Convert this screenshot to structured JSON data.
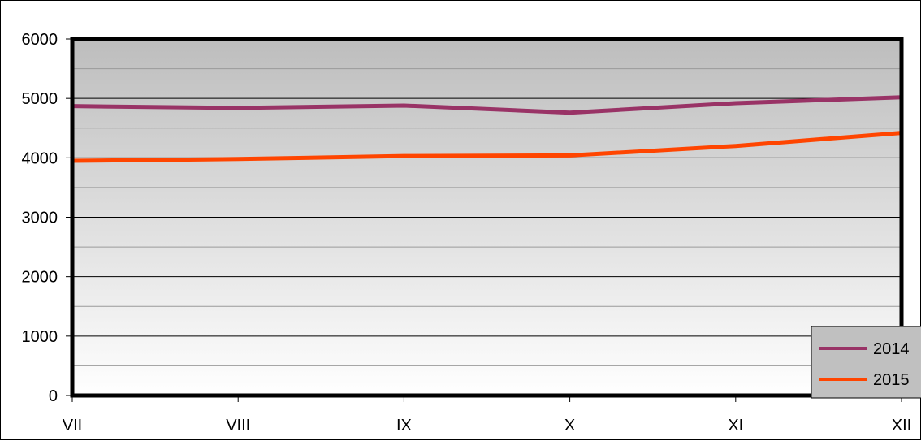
{
  "chart_data": {
    "type": "line",
    "categories": [
      "VII",
      "VIII",
      "IX",
      "X",
      "XI",
      "XII"
    ],
    "ylim": [
      0,
      6000
    ],
    "yticks": [
      0,
      1000,
      2000,
      3000,
      4000,
      5000,
      6000
    ],
    "ytick_labels": [
      "0",
      "1000",
      "2000",
      "3000",
      "4000",
      "5000",
      "6000"
    ],
    "series": [
      {
        "name": "2014",
        "color": "#993366",
        "values": [
          4870,
          4840,
          4880,
          4760,
          4920,
          5020
        ]
      },
      {
        "name": "2015",
        "color": "#ff4500",
        "values": [
          3950,
          3980,
          4030,
          4040,
          4200,
          4420
        ]
      }
    ],
    "grid": true,
    "legend_position": "bottom-right",
    "plot_background": "gradient grey-to-white"
  }
}
